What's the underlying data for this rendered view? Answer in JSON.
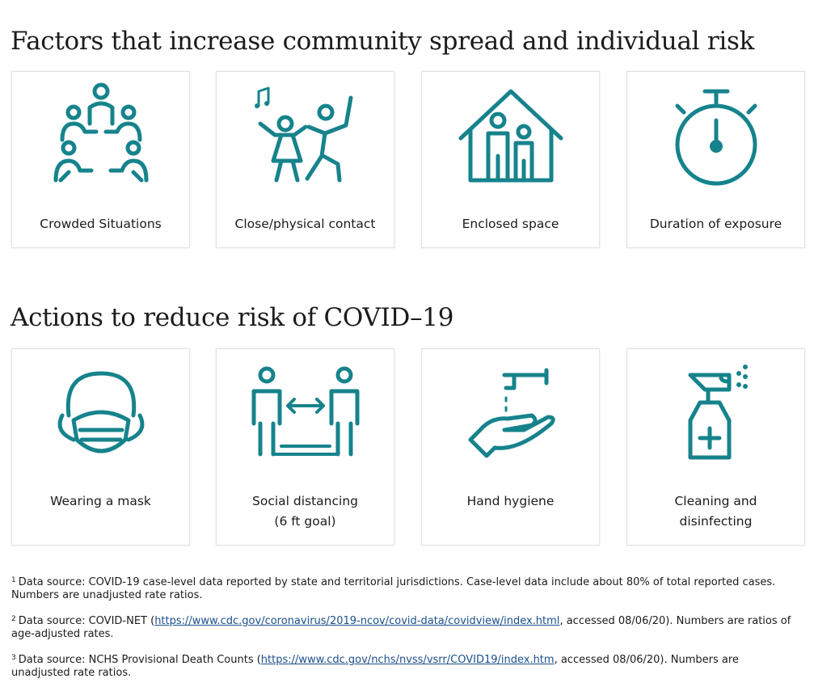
{
  "sections": [
    {
      "title": "Factors that increase community spread and individual risk",
      "cards": [
        {
          "lines": [
            "Crowded Situations"
          ]
        },
        {
          "lines": [
            "Close/physical contact"
          ]
        },
        {
          "lines": [
            "Enclosed space"
          ]
        },
        {
          "lines": [
            "Duration of exposure"
          ]
        }
      ]
    },
    {
      "title": "Actions to reduce risk of COVID–19",
      "cards": [
        {
          "lines": [
            "Wearing a mask"
          ]
        },
        {
          "lines": [
            "Social distancing",
            "(6 ft goal)"
          ]
        },
        {
          "lines": [
            "Hand hygiene"
          ]
        },
        {
          "lines": [
            "Cleaning and",
            "disinfecting"
          ]
        }
      ]
    }
  ],
  "footnotes": [
    {
      "mark": "1",
      "before": "Data source: COVID-19 case-level data reported by state and territorial jurisdictions. Case-level data include about 80% of total reported cases. Numbers are unadjusted rate ratios."
    },
    {
      "mark": "2",
      "before": "Data source: COVID-NET (",
      "link": "https://www.cdc.gov/coronavirus/2019-ncov/covid-data/covidview/index.html",
      "after": ", accessed 08/06/20). Numbers are ratios of age-adjusted rates."
    },
    {
      "mark": "3",
      "before": "Data source: NCHS Provisional Death Counts (",
      "link": "https://www.cdc.gov/nchs/nvss/vsrr/COVID19/index.htm",
      "after": ", accessed 08/06/20). Numbers are unadjusted rate ratios."
    }
  ]
}
